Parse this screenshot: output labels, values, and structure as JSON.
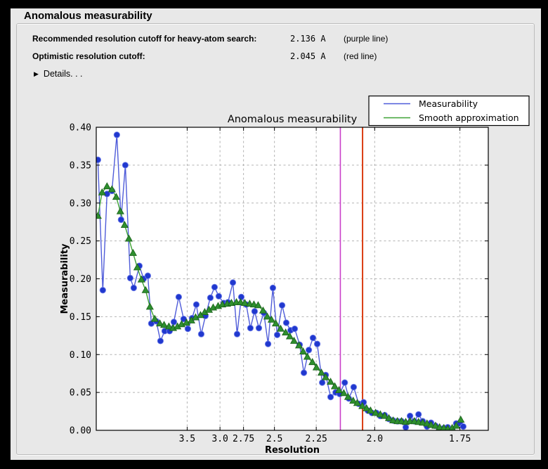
{
  "panel": {
    "title": "Anomalous measurability"
  },
  "info": {
    "rows": [
      {
        "label": "Recommended resolution cutoff for heavy-atom search:",
        "value": "2.136 A",
        "note": "(purple line)"
      },
      {
        "label": "Optimistic resolution cutoff:",
        "value": "2.045 A",
        "note": "(red line)"
      }
    ],
    "details_icon": "▶",
    "details_label": "Details. . ."
  },
  "colors": {
    "background": "#000000",
    "panel": "#e8e8e8",
    "plot_background": "#ffffff",
    "grid": "#b3b3b3",
    "axis": "#000000",
    "measurability_line": "#4f5cd9",
    "measurability_marker": "#2038cf",
    "measurability_marker_edge": "#7280e8",
    "smooth_line": "#3da235",
    "smooth_marker": "#2e8f2e",
    "smooth_marker_edge": "#1d651d",
    "purple_line": "#c93fc9",
    "red_line": "#da3b10",
    "legend_background": "#ffffff",
    "legend_border": "#000000"
  },
  "chart_data": {
    "type": "line",
    "title": "Anomalous measurability",
    "xlabel": "Resolution",
    "ylabel": "Measurability",
    "x_scale": "reciprocal_d_squared",
    "x_unit": "Angstrom",
    "grid": true,
    "ylim": [
      0.0,
      0.4
    ],
    "x_ticks": [
      3.5,
      3.0,
      2.75,
      2.5,
      2.25,
      2.0,
      1.75
    ],
    "x_tick_labels": [
      "3.5",
      "3.0",
      "2.75",
      "2.5",
      "2.25",
      "2.0",
      "1.75"
    ],
    "y_ticks": [
      0.0,
      0.05,
      0.1,
      0.15,
      0.2,
      0.25,
      0.3,
      0.35,
      0.4
    ],
    "y_tick_labels": [
      "0.00",
      "0.05",
      "0.10",
      "0.15",
      "0.20",
      "0.25",
      "0.30",
      "0.35",
      "0.40"
    ],
    "legend_position": "top-right-outside",
    "cutoff_lines": [
      {
        "name": "recommended-cutoff",
        "resolution_A": 2.136,
        "color": "#c93fc9",
        "label": "purple line"
      },
      {
        "name": "optimistic-cutoff",
        "resolution_A": 2.045,
        "color": "#da3b10",
        "label": "red line"
      }
    ],
    "series": [
      {
        "name": "Measurability",
        "marker": "circle",
        "marker_color": "#2038cf",
        "marker_edge": "#7280e8",
        "line_color": "#4f5cd9",
        "points": [
          [
            26.08,
            0.357
          ],
          [
            13.03,
            0.185
          ],
          [
            10.17,
            0.312
          ],
          [
            8.424,
            0.316
          ],
          [
            7.35,
            0.39
          ],
          [
            6.697,
            0.278
          ],
          [
            6.191,
            0.35
          ],
          [
            5.725,
            0.201
          ],
          [
            5.45,
            0.188
          ],
          [
            5.082,
            0.217
          ],
          [
            4.851,
            0.2
          ],
          [
            4.648,
            0.204
          ],
          [
            4.497,
            0.141
          ],
          [
            4.309,
            0.144
          ],
          [
            4.165,
            0.118
          ],
          [
            4.034,
            0.131
          ],
          [
            3.897,
            0.131
          ],
          [
            3.789,
            0.143
          ],
          [
            3.675,
            0.176
          ],
          [
            3.57,
            0.147
          ],
          [
            3.487,
            0.134
          ],
          [
            3.409,
            0.148
          ],
          [
            3.336,
            0.166
          ],
          [
            3.257,
            0.127
          ],
          [
            3.194,
            0.151
          ],
          [
            3.124,
            0.175
          ],
          [
            3.068,
            0.189
          ],
          [
            3.015,
            0.177
          ],
          [
            2.956,
            0.168
          ],
          [
            2.908,
            0.169
          ],
          [
            2.855,
            0.195
          ],
          [
            2.812,
            0.127
          ],
          [
            2.771,
            0.176
          ],
          [
            2.725,
            0.166
          ],
          [
            2.688,
            0.135
          ],
          [
            2.652,
            0.157
          ],
          [
            2.617,
            0.135
          ],
          [
            2.578,
            0.155
          ],
          [
            2.546,
            0.114
          ],
          [
            2.511,
            0.188
          ],
          [
            2.481,
            0.126
          ],
          [
            2.448,
            0.165
          ],
          [
            2.421,
            0.142
          ],
          [
            2.394,
            0.132
          ],
          [
            2.369,
            0.134
          ],
          [
            2.34,
            0.113
          ],
          [
            2.316,
            0.076
          ],
          [
            2.289,
            0.106
          ],
          [
            2.267,
            0.122
          ],
          [
            2.245,
            0.114
          ],
          [
            2.22,
            0.063
          ],
          [
            2.203,
            0.073
          ],
          [
            2.18,
            0.044
          ],
          [
            2.157,
            0.05
          ],
          [
            2.139,
            0.048
          ],
          [
            2.117,
            0.063
          ],
          [
            2.1,
            0.042
          ],
          [
            2.08,
            0.057
          ],
          [
            2.06,
            0.035
          ],
          [
            2.041,
            0.037
          ],
          [
            2.025,
            0.026
          ],
          [
            2.01,
            0.023
          ],
          [
            1.994,
            0.023
          ],
          [
            1.98,
            0.019
          ],
          [
            1.965,
            0.02
          ],
          [
            1.951,
            0.015
          ],
          [
            1.937,
            0.013
          ],
          [
            1.923,
            0.012
          ],
          [
            1.91,
            0.012
          ],
          [
            1.897,
            0.004
          ],
          [
            1.884,
            0.019
          ],
          [
            1.871,
            0.012
          ],
          [
            1.859,
            0.021
          ],
          [
            1.847,
            0.012
          ],
          [
            1.835,
            0.005
          ],
          [
            1.824,
            0.01
          ],
          [
            1.812,
            0.006
          ],
          [
            1.801,
            0.002
          ],
          [
            1.79,
            0.003
          ],
          [
            1.78,
            0.004
          ],
          [
            1.769,
            0.002
          ],
          [
            1.759,
            0.009
          ],
          [
            1.75,
            0.009
          ],
          [
            1.742,
            0.005
          ]
        ]
      },
      {
        "name": "Smooth approximation",
        "marker": "triangle",
        "marker_color": "#2e8f2e",
        "marker_edge": "#1d651d",
        "line_color": "#3da235",
        "points": [
          [
            26.08,
            0.283
          ],
          [
            13.79,
            0.314
          ],
          [
            10.17,
            0.322
          ],
          [
            8.424,
            0.318
          ],
          [
            7.472,
            0.308
          ],
          [
            6.797,
            0.289
          ],
          [
            6.266,
            0.271
          ],
          [
            5.845,
            0.253
          ],
          [
            5.5,
            0.234
          ],
          [
            5.211,
            0.215
          ],
          [
            4.964,
            0.199
          ],
          [
            4.752,
            0.185
          ],
          [
            4.556,
            0.163
          ],
          [
            4.364,
            0.147
          ],
          [
            4.184,
            0.141
          ],
          [
            4.052,
            0.139
          ],
          [
            3.916,
            0.137
          ],
          [
            3.806,
            0.135
          ],
          [
            3.703,
            0.137
          ],
          [
            3.613,
            0.14
          ],
          [
            3.514,
            0.142
          ],
          [
            3.422,
            0.145
          ],
          [
            3.348,
            0.149
          ],
          [
            3.268,
            0.152
          ],
          [
            3.204,
            0.156
          ],
          [
            3.143,
            0.159
          ],
          [
            3.086,
            0.162
          ],
          [
            3.023,
            0.164
          ],
          [
            2.972,
            0.166
          ],
          [
            2.916,
            0.167
          ],
          [
            2.87,
            0.168
          ],
          [
            2.819,
            0.169
          ],
          [
            2.778,
            0.169
          ],
          [
            2.738,
            0.168
          ],
          [
            2.694,
            0.167
          ],
          [
            2.658,
            0.166
          ],
          [
            2.623,
            0.165
          ],
          [
            2.584,
            0.158
          ],
          [
            2.552,
            0.15
          ],
          [
            2.521,
            0.146
          ],
          [
            2.491,
            0.141
          ],
          [
            2.458,
            0.134
          ],
          [
            2.425,
            0.129
          ],
          [
            2.399,
            0.124
          ],
          [
            2.373,
            0.118
          ],
          [
            2.344,
            0.112
          ],
          [
            2.32,
            0.104
          ],
          [
            2.297,
            0.097
          ],
          [
            2.27,
            0.09
          ],
          [
            2.249,
            0.083
          ],
          [
            2.224,
            0.076
          ],
          [
            2.203,
            0.07
          ],
          [
            2.18,
            0.064
          ],
          [
            2.161,
            0.058
          ],
          [
            2.142,
            0.053
          ],
          [
            2.121,
            0.049
          ],
          [
            2.103,
            0.044
          ],
          [
            2.082,
            0.039
          ],
          [
            2.066,
            0.036
          ],
          [
            2.046,
            0.032
          ],
          [
            2.03,
            0.029
          ],
          [
            2.015,
            0.026
          ],
          [
            1.997,
            0.023
          ],
          [
            1.98,
            0.021
          ],
          [
            1.965,
            0.019
          ],
          [
            1.951,
            0.016
          ],
          [
            1.937,
            0.013
          ],
          [
            1.923,
            0.012
          ],
          [
            1.91,
            0.012
          ],
          [
            1.897,
            0.011
          ],
          [
            1.884,
            0.012
          ],
          [
            1.871,
            0.012
          ],
          [
            1.859,
            0.011
          ],
          [
            1.847,
            0.01
          ],
          [
            1.835,
            0.009
          ],
          [
            1.824,
            0.007
          ],
          [
            1.812,
            0.006
          ],
          [
            1.801,
            0.004
          ],
          [
            1.79,
            0.003
          ],
          [
            1.78,
            0.002
          ],
          [
            1.769,
            0.003
          ],
          [
            1.759,
            0.006
          ],
          [
            1.748,
            0.014
          ]
        ]
      }
    ]
  }
}
